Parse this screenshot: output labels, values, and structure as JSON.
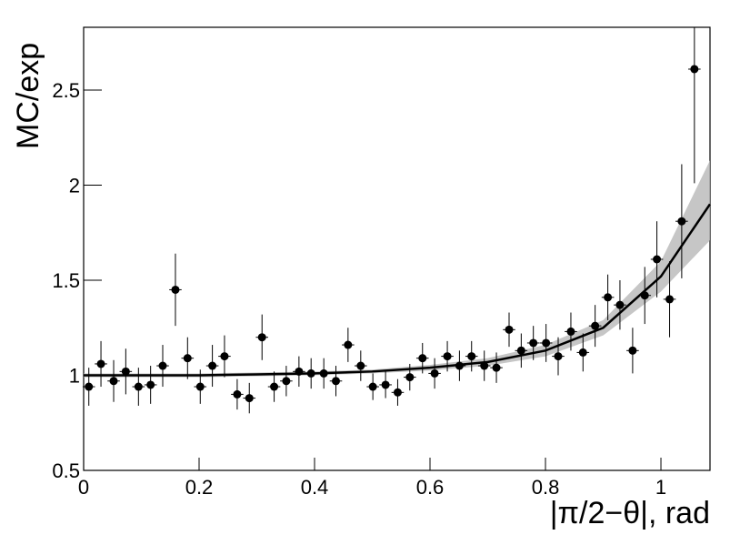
{
  "chart_data": {
    "type": "scatter",
    "y_label": "MC/exp",
    "x_label": "|π/2−θ|, rad",
    "xlim": [
      0,
      1.085
    ],
    "ylim": [
      0.5,
      2.83
    ],
    "xticks": [
      0,
      0.2,
      0.4,
      0.6,
      0.8,
      1
    ],
    "yticks": [
      0.5,
      1,
      1.5,
      2,
      2.5
    ],
    "color": "#000000",
    "xerr": 0.0107,
    "x": [
      0.009,
      0.03,
      0.052,
      0.073,
      0.095,
      0.116,
      0.137,
      0.159,
      0.18,
      0.202,
      0.223,
      0.244,
      0.266,
      0.287,
      0.309,
      0.33,
      0.351,
      0.373,
      0.394,
      0.416,
      0.437,
      0.458,
      0.48,
      0.501,
      0.523,
      0.544,
      0.565,
      0.587,
      0.608,
      0.63,
      0.651,
      0.672,
      0.694,
      0.715,
      0.737,
      0.758,
      0.779,
      0.801,
      0.822,
      0.844,
      0.865,
      0.886,
      0.908,
      0.929,
      0.951,
      0.972,
      0.993,
      1.015,
      1.036,
      1.058
    ],
    "values": [
      0.94,
      1.06,
      0.97,
      1.02,
      0.94,
      0.95,
      1.05,
      1.45,
      1.09,
      0.94,
      1.05,
      1.1,
      0.9,
      0.88,
      1.2,
      0.94,
      0.97,
      1.02,
      1.01,
      1.01,
      0.97,
      1.16,
      1.05,
      0.94,
      0.95,
      0.91,
      0.99,
      1.09,
      1.01,
      1.1,
      1.05,
      1.1,
      1.05,
      1.04,
      1.24,
      1.13,
      1.17,
      1.17,
      1.1,
      1.23,
      1.12,
      1.26,
      1.41,
      1.37,
      1.13,
      1.42,
      1.61,
      1.4,
      1.81,
      2.61
    ],
    "errors": [
      0.1,
      0.12,
      0.11,
      0.12,
      0.1,
      0.1,
      0.11,
      0.19,
      0.11,
      0.09,
      0.11,
      0.11,
      0.08,
      0.08,
      0.12,
      0.08,
      0.08,
      0.08,
      0.08,
      0.08,
      0.08,
      0.09,
      0.08,
      0.07,
      0.07,
      0.07,
      0.07,
      0.08,
      0.08,
      0.08,
      0.08,
      0.08,
      0.08,
      0.08,
      0.09,
      0.09,
      0.09,
      0.1,
      0.1,
      0.1,
      0.1,
      0.11,
      0.12,
      0.13,
      0.12,
      0.15,
      0.2,
      0.2,
      0.3,
      0.6
    ],
    "fit": {
      "color": "#000000",
      "band_color": "#b8b8b8",
      "x": [
        0,
        0.1,
        0.2,
        0.3,
        0.4,
        0.5,
        0.6,
        0.7,
        0.8,
        0.9,
        1.0,
        1.085
      ],
      "values": [
        1.0,
        1.0,
        1.0,
        1.005,
        1.01,
        1.02,
        1.04,
        1.07,
        1.13,
        1.25,
        1.52,
        1.9
      ],
      "low": [
        0.99,
        0.99,
        0.99,
        0.995,
        1.0,
        1.01,
        1.025,
        1.05,
        1.1,
        1.21,
        1.44,
        1.71
      ],
      "high": [
        1.01,
        1.01,
        1.01,
        1.015,
        1.02,
        1.03,
        1.055,
        1.09,
        1.16,
        1.29,
        1.6,
        2.13
      ]
    }
  }
}
